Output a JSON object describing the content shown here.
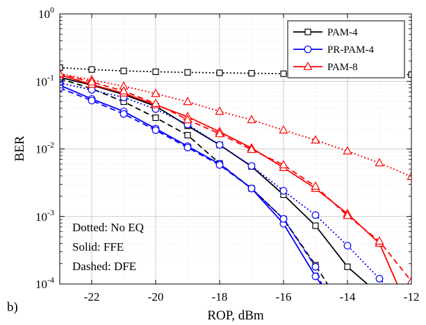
{
  "chart_data": {
    "type": "line",
    "panel_label": "b)",
    "xlabel": "ROP, dBm",
    "ylabel": "BER",
    "xlim": [
      -23,
      -12
    ],
    "ylim": [
      0.0001,
      1
    ],
    "y_scale": "log",
    "grid": true,
    "legend_position": "top-right",
    "x_ticks": [
      -22,
      -20,
      -18,
      -16,
      -14,
      -12
    ],
    "x_tick_labels": [
      "-22",
      "-20",
      "-18",
      "-16",
      "-14",
      "-12"
    ],
    "y_ticks": [
      0.0001,
      0.001,
      0.01,
      0.1,
      1
    ],
    "y_tick_labels": [
      {
        "base": "10",
        "exp": "-4"
      },
      {
        "base": "10",
        "exp": "-3"
      },
      {
        "base": "10",
        "exp": "-2"
      },
      {
        "base": "10",
        "exp": "-1"
      },
      {
        "base": "10",
        "exp": "0"
      }
    ],
    "legend": [
      {
        "name": "PAM-4",
        "color": "#000000",
        "marker": "square"
      },
      {
        "name": "PR-PAM-4",
        "color": "#0000ff",
        "marker": "circle"
      },
      {
        "name": "PAM-8",
        "color": "#ff0000",
        "marker": "triangle"
      }
    ],
    "annotations": [
      "Dotted: No EQ",
      "Solid: FFE",
      "Dashed: DFE"
    ],
    "series": [
      {
        "format": "PAM-4",
        "equalizer": "No EQ",
        "style": "dotted",
        "color": "#000000",
        "marker": "square",
        "x": [
          -23,
          -22,
          -21,
          -20,
          -19,
          -18,
          -17,
          -16,
          -15,
          -14,
          -13,
          -12
        ],
        "y": [
          0.16,
          0.15,
          0.143,
          0.139,
          0.136,
          0.134,
          0.132,
          0.13,
          0.129,
          0.128,
          0.127,
          0.126
        ]
      },
      {
        "format": "PAM-4",
        "equalizer": "FFE",
        "style": "solid",
        "color": "#000000",
        "marker": "square",
        "x": [
          -23,
          -22,
          -21,
          -20,
          -19,
          -18,
          -17,
          -16,
          -15,
          -14,
          -13
        ],
        "y": [
          0.115,
          0.088,
          0.064,
          0.043,
          0.022,
          0.0115,
          0.0055,
          0.0021,
          0.00073,
          0.00018,
          7e-05
        ]
      },
      {
        "format": "PAM-4",
        "equalizer": "DFE",
        "style": "dashed",
        "color": "#000000",
        "marker": "square",
        "x": [
          -23,
          -22,
          -21,
          -20,
          -19,
          -18,
          -17,
          -16,
          -15,
          -14.5
        ],
        "y": [
          0.11,
          0.078,
          0.05,
          0.029,
          0.016,
          0.0061,
          0.0026,
          0.00092,
          0.00019,
          8e-05
        ]
      },
      {
        "format": "PR-PAM-4",
        "equalizer": "No EQ",
        "style": "dotted",
        "color": "#0000ff",
        "marker": "circle",
        "x": [
          -23,
          -22,
          -21,
          -20,
          -19,
          -18,
          -17,
          -16,
          -15,
          -14,
          -13,
          -12.4
        ],
        "y": [
          0.095,
          0.075,
          0.058,
          0.039,
          0.023,
          0.0115,
          0.0056,
          0.0024,
          0.00105,
          0.00037,
          0.00012,
          6e-05
        ]
      },
      {
        "format": "PR-PAM-4",
        "equalizer": "FFE",
        "style": "solid",
        "color": "#0000ff",
        "marker": "circle",
        "x": [
          -23,
          -22,
          -21,
          -20,
          -19,
          -18,
          -17,
          -16,
          -15,
          -14.6
        ],
        "y": [
          0.088,
          0.055,
          0.036,
          0.02,
          0.011,
          0.006,
          0.0026,
          0.00078,
          0.00013,
          7e-05
        ]
      },
      {
        "format": "PR-PAM-4",
        "equalizer": "DFE",
        "style": "dashed",
        "color": "#0000ff",
        "marker": "circle",
        "x": [
          -23,
          -22,
          -21,
          -20,
          -19,
          -18,
          -17,
          -16,
          -15,
          -14.7
        ],
        "y": [
          0.08,
          0.052,
          0.033,
          0.019,
          0.0105,
          0.0058,
          0.0026,
          0.00092,
          0.00018,
          7e-05
        ]
      },
      {
        "format": "PAM-8",
        "equalizer": "No EQ",
        "style": "dotted",
        "color": "#ff0000",
        "marker": "triangle",
        "x": [
          -23,
          -22,
          -21,
          -20,
          -19,
          -18,
          -17,
          -16,
          -15,
          -14,
          -13,
          -12
        ],
        "y": [
          0.13,
          0.105,
          0.085,
          0.066,
          0.05,
          0.036,
          0.027,
          0.019,
          0.0135,
          0.0093,
          0.0062,
          0.0039
        ]
      },
      {
        "format": "PAM-8",
        "equalizer": "FFE",
        "style": "solid",
        "color": "#ff0000",
        "marker": "triangle",
        "x": [
          -23,
          -22,
          -21,
          -20,
          -19,
          -18,
          -17,
          -16,
          -15,
          -14,
          -13,
          -12.3
        ],
        "y": [
          0.125,
          0.09,
          0.067,
          0.045,
          0.03,
          0.018,
          0.0103,
          0.0053,
          0.0026,
          0.0011,
          0.0004,
          7e-05
        ]
      },
      {
        "format": "PAM-8",
        "equalizer": "DFE",
        "style": "dashed",
        "color": "#ff0000",
        "marker": "triangle",
        "x": [
          -23,
          -22,
          -21,
          -20,
          -19,
          -18,
          -17,
          -16,
          -15,
          -14,
          -13,
          -12
        ],
        "y": [
          0.13,
          0.098,
          0.072,
          0.047,
          0.027,
          0.0168,
          0.0098,
          0.0058,
          0.0028,
          0.00103,
          0.00043,
          0.00011
        ]
      }
    ]
  }
}
